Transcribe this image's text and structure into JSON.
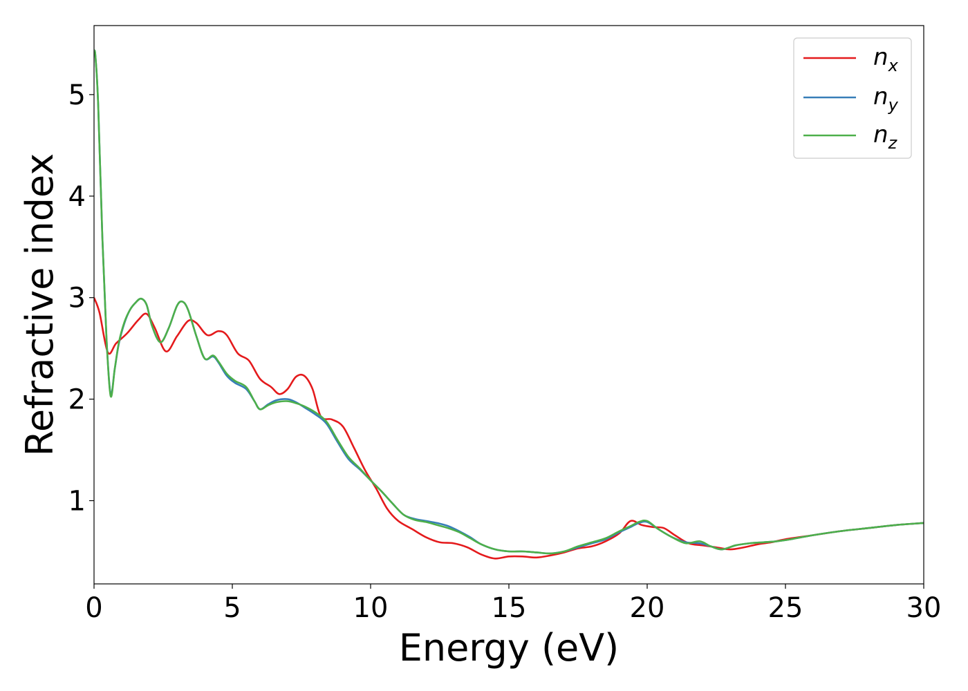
{
  "chart_data": {
    "type": "line",
    "xlabel": "Energy (eV)",
    "ylabel": "Refractive index",
    "xlim": [
      0,
      30
    ],
    "ylim": [
      0.18,
      5.68
    ],
    "xticks": [
      "0",
      "5",
      "10",
      "15",
      "20",
      "25",
      "30"
    ],
    "yticks": [
      "1",
      "2",
      "3",
      "4",
      "5"
    ],
    "legend_position": "top-right",
    "grid": false,
    "series": [
      {
        "name": "n",
        "sub": "x",
        "color": "#e41a1c",
        "x": [
          0,
          0.2,
          0.5,
          0.8,
          1.2,
          1.6,
          1.9,
          2.2,
          2.6,
          3.0,
          3.4,
          3.7,
          4.1,
          4.5,
          4.8,
          5.2,
          5.6,
          6.0,
          6.4,
          6.7,
          7.0,
          7.3,
          7.6,
          7.9,
          8.2,
          8.6,
          9.0,
          9.4,
          9.8,
          10.2,
          10.6,
          11.0,
          11.5,
          12.0,
          12.5,
          13.0,
          13.5,
          14.0,
          14.5,
          15.0,
          15.5,
          16.0,
          16.5,
          17.0,
          17.5,
          18.0,
          18.5,
          19.0,
          19.4,
          19.8,
          20.2,
          20.6,
          21.0,
          21.5,
          22.0,
          22.5,
          23.0,
          23.5,
          24.0,
          24.5,
          25,
          26,
          27,
          28,
          29,
          30
        ],
        "y": [
          3.0,
          2.85,
          2.46,
          2.55,
          2.65,
          2.78,
          2.84,
          2.7,
          2.47,
          2.62,
          2.77,
          2.75,
          2.63,
          2.67,
          2.63,
          2.45,
          2.38,
          2.2,
          2.12,
          2.05,
          2.1,
          2.22,
          2.23,
          2.1,
          1.83,
          1.8,
          1.73,
          1.52,
          1.3,
          1.12,
          0.92,
          0.8,
          0.72,
          0.64,
          0.59,
          0.58,
          0.54,
          0.47,
          0.43,
          0.45,
          0.45,
          0.44,
          0.46,
          0.49,
          0.53,
          0.55,
          0.6,
          0.68,
          0.8,
          0.76,
          0.74,
          0.73,
          0.66,
          0.58,
          0.56,
          0.54,
          0.52,
          0.54,
          0.57,
          0.59,
          0.62,
          0.66,
          0.7,
          0.73,
          0.76,
          0.78
        ]
      },
      {
        "name": "n",
        "sub": "y",
        "color": "#377eb8",
        "x": [
          0,
          0.05,
          0.15,
          0.3,
          0.45,
          0.6,
          0.75,
          0.9,
          1.1,
          1.3,
          1.5,
          1.7,
          1.9,
          2.1,
          2.4,
          2.7,
          3.0,
          3.2,
          3.4,
          3.7,
          4.0,
          4.3,
          4.5,
          4.8,
          5.1,
          5.5,
          5.8,
          6.0,
          6.3,
          6.6,
          7.0,
          7.3,
          7.6,
          8.0,
          8.4,
          8.8,
          9.2,
          9.6,
          10.0,
          10.4,
          10.8,
          11.2,
          11.6,
          12.0,
          12.4,
          12.8,
          13.2,
          13.6,
          14.0,
          14.5,
          15.0,
          15.5,
          16.0,
          16.5,
          17.0,
          17.5,
          18.0,
          18.5,
          19.0,
          19.4,
          19.7,
          20.0,
          20.4,
          20.9,
          21.4,
          21.9,
          22.3,
          22.7,
          23.2,
          23.7,
          24.2,
          24.7,
          25.2,
          26,
          27,
          28,
          29,
          30
        ],
        "y": [
          5.43,
          5.38,
          4.9,
          3.6,
          2.6,
          2.05,
          2.3,
          2.55,
          2.75,
          2.88,
          2.95,
          2.99,
          2.93,
          2.72,
          2.56,
          2.7,
          2.92,
          2.96,
          2.88,
          2.62,
          2.4,
          2.42,
          2.36,
          2.23,
          2.16,
          2.1,
          1.98,
          1.9,
          1.95,
          1.99,
          2.0,
          1.97,
          1.92,
          1.85,
          1.76,
          1.58,
          1.41,
          1.31,
          1.2,
          1.09,
          0.97,
          0.86,
          0.82,
          0.8,
          0.78,
          0.75,
          0.7,
          0.64,
          0.57,
          0.52,
          0.5,
          0.5,
          0.49,
          0.48,
          0.5,
          0.54,
          0.58,
          0.62,
          0.69,
          0.74,
          0.78,
          0.79,
          0.72,
          0.64,
          0.59,
          0.58,
          0.55,
          0.52,
          0.56,
          0.58,
          0.59,
          0.6,
          0.62,
          0.66,
          0.7,
          0.73,
          0.76,
          0.78
        ]
      },
      {
        "name": "n",
        "sub": "z",
        "color": "#4daf4a",
        "x": [
          0,
          0.05,
          0.15,
          0.3,
          0.45,
          0.6,
          0.75,
          0.9,
          1.1,
          1.3,
          1.5,
          1.7,
          1.9,
          2.1,
          2.4,
          2.7,
          3.0,
          3.2,
          3.4,
          3.7,
          4.0,
          4.3,
          4.5,
          4.8,
          5.1,
          5.5,
          5.8,
          6.0,
          6.3,
          6.6,
          7.0,
          7.3,
          7.6,
          8.0,
          8.4,
          8.8,
          9.2,
          9.6,
          10.0,
          10.4,
          10.8,
          11.2,
          11.6,
          12.0,
          12.4,
          12.8,
          13.2,
          13.6,
          14.0,
          14.5,
          15.0,
          15.5,
          16.0,
          16.5,
          17.0,
          17.5,
          18.0,
          18.5,
          19.0,
          19.4,
          19.7,
          20.0,
          20.4,
          20.9,
          21.4,
          21.9,
          22.3,
          22.7,
          23.2,
          23.7,
          24.2,
          24.7,
          25.2,
          26,
          27,
          28,
          29,
          30
        ],
        "y": [
          5.43,
          5.38,
          4.9,
          3.6,
          2.6,
          2.03,
          2.3,
          2.56,
          2.76,
          2.88,
          2.95,
          2.99,
          2.93,
          2.72,
          2.56,
          2.7,
          2.92,
          2.96,
          2.88,
          2.62,
          2.4,
          2.43,
          2.37,
          2.25,
          2.18,
          2.12,
          1.98,
          1.9,
          1.94,
          1.97,
          1.98,
          1.96,
          1.93,
          1.87,
          1.78,
          1.6,
          1.43,
          1.32,
          1.2,
          1.09,
          0.97,
          0.86,
          0.81,
          0.79,
          0.76,
          0.73,
          0.69,
          0.63,
          0.57,
          0.52,
          0.5,
          0.5,
          0.49,
          0.48,
          0.5,
          0.55,
          0.59,
          0.63,
          0.7,
          0.75,
          0.79,
          0.8,
          0.72,
          0.64,
          0.58,
          0.6,
          0.55,
          0.52,
          0.56,
          0.58,
          0.59,
          0.6,
          0.62,
          0.66,
          0.7,
          0.73,
          0.76,
          0.78
        ]
      }
    ]
  }
}
